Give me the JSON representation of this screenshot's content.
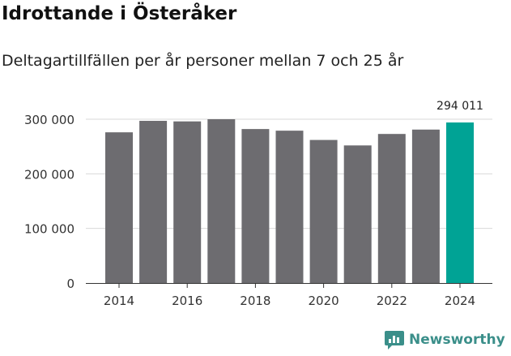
{
  "header": {
    "title": "Idrottande i Österåker",
    "subtitle": "Deltagartillfällen per år personer mellan 7 och 25 år"
  },
  "brand": {
    "name": "Newsworthy",
    "icon": "newsworthy-logo-icon",
    "color": "#3b8f8a"
  },
  "colors": {
    "bar": "#6d6c70",
    "highlight": "#00a395",
    "grid": "#d9d9d9",
    "axis": "#333333"
  },
  "chart_data": {
    "type": "bar",
    "title": "Idrottande i Österåker",
    "subtitle": "Deltagartillfällen per år personer mellan 7 och 25 år",
    "categories": [
      "2014",
      "2015",
      "2016",
      "2017",
      "2018",
      "2019",
      "2020",
      "2021",
      "2022",
      "2023",
      "2024"
    ],
    "values": [
      276000,
      297000,
      296000,
      300000,
      282000,
      279000,
      262000,
      252000,
      273000,
      281000,
      294011
    ],
    "highlight_index": 10,
    "data_labels": [
      {
        "index": 10,
        "text": "294 011"
      }
    ],
    "x_tick_labels": [
      "2014",
      "2016",
      "2018",
      "2020",
      "2022",
      "2024"
    ],
    "y_ticks": [
      0,
      100000,
      200000,
      300000
    ],
    "y_tick_labels": [
      "0",
      "100 000",
      "200 000",
      "300 000"
    ],
    "ylim": [
      0,
      300000
    ],
    "xlabel": "",
    "ylabel": "",
    "grid": true
  }
}
